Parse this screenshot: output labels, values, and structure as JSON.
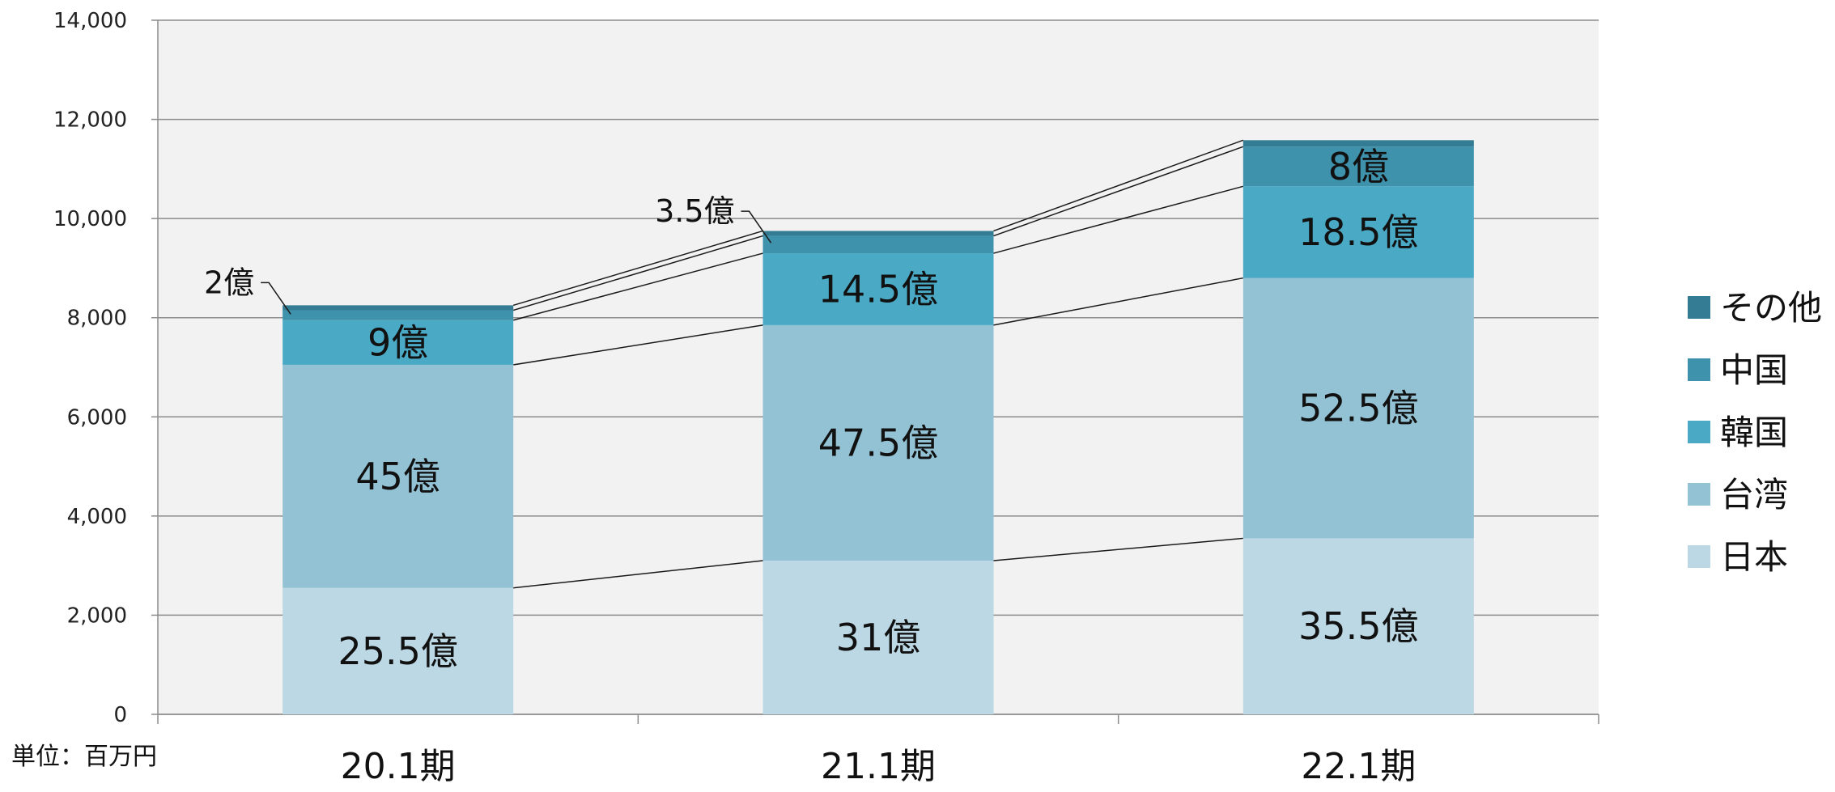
{
  "chart_data": {
    "type": "bar",
    "stacked": true,
    "categories": [
      "20.1期",
      "21.1期",
      "22.1期"
    ],
    "series": [
      {
        "name": "日本",
        "values": [
          2550,
          3100,
          3550
        ],
        "labels": [
          "25.5億",
          "31億",
          "35.5億"
        ],
        "color": "#bcd8e4"
      },
      {
        "name": "台湾",
        "values": [
          4500,
          4750,
          5250
        ],
        "labels": [
          "45億",
          "47.5億",
          "52.5億"
        ],
        "color": "#92c2d4"
      },
      {
        "name": "韓国",
        "values": [
          900,
          1450,
          1850
        ],
        "labels": [
          "9億",
          "14.5億",
          "18.5億"
        ],
        "color": "#4aaac6"
      },
      {
        "name": "中国",
        "values": [
          200,
          350,
          800
        ],
        "labels": [
          "2億",
          "3.5億",
          "8億"
        ],
        "color": "#3f92ab"
      },
      {
        "name": "その他",
        "values": [
          100,
          100,
          130
        ],
        "labels": [
          "",
          "",
          ""
        ],
        "color": "#347c93"
      }
    ],
    "ylim": [
      0,
      14000
    ],
    "yticks": [
      0,
      2000,
      4000,
      6000,
      8000,
      10000,
      12000,
      14000
    ],
    "ytick_labels": [
      "0",
      "2,000",
      "4,000",
      "6,000",
      "8,000",
      "10,000",
      "12,000",
      "14,000"
    ],
    "unit_label": "単位：百万円",
    "grid": true,
    "legend_position": "right"
  }
}
